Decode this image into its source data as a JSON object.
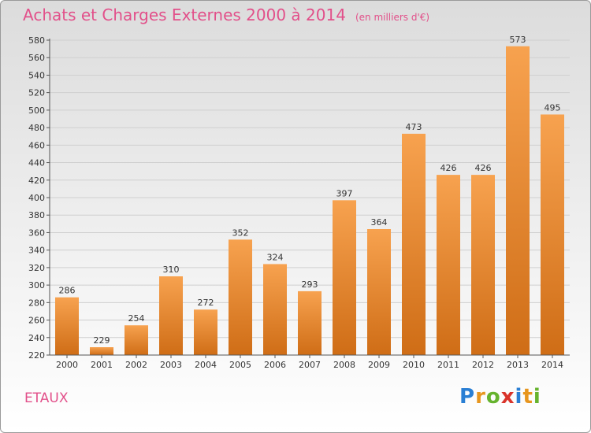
{
  "title": "Achats et Charges Externes 2000 à 2014",
  "unit_note": "(en milliers d'€)",
  "place": "ETAUX",
  "logo": {
    "text": "Proxiti",
    "letters": [
      {
        "char": "P",
        "color": "#2a7fd4"
      },
      {
        "char": "r",
        "color": "#e7961f"
      },
      {
        "char": "o",
        "color": "#66b32e"
      },
      {
        "char": "x",
        "color": "#d9342b"
      },
      {
        "char": "i",
        "color": "#2a7fd4"
      },
      {
        "char": "t",
        "color": "#e7961f"
      },
      {
        "char": "i",
        "color": "#66b32e"
      }
    ]
  },
  "colors": {
    "bar_top": "#f7a24f",
    "bar_bottom": "#cf6d16",
    "title": "#e2508a",
    "grid": "#cfcfcf"
  },
  "chart_data": {
    "type": "bar",
    "categories": [
      "2000",
      "2001",
      "2002",
      "2003",
      "2004",
      "2005",
      "2006",
      "2007",
      "2008",
      "2009",
      "2010",
      "2011",
      "2012",
      "2013",
      "2014"
    ],
    "values": [
      286,
      229,
      254,
      310,
      272,
      352,
      324,
      293,
      397,
      364,
      473,
      426,
      426,
      573,
      495
    ],
    "ylim": [
      220,
      580
    ],
    "ytick_step": 20,
    "grid": true,
    "xlabel": "",
    "ylabel": ""
  }
}
